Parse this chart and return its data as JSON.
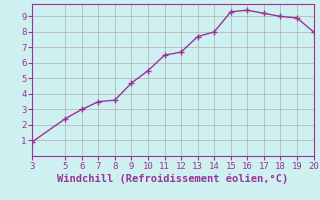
{
  "x": [
    3,
    5,
    6,
    7,
    8,
    9,
    10,
    11,
    12,
    13,
    14,
    15,
    16,
    17,
    18,
    19,
    20
  ],
  "y": [
    0.9,
    2.4,
    3.0,
    3.5,
    3.6,
    4.7,
    5.5,
    6.5,
    6.7,
    7.7,
    8.0,
    9.3,
    9.4,
    9.2,
    9.0,
    8.9,
    8.0
  ],
  "line_color": "#993399",
  "marker": "+",
  "marker_size": 4,
  "marker_linewidth": 1.0,
  "bg_color": "#cff0f0",
  "grid_color": "#b0b0b0",
  "xlabel": "Windchill (Refroidissement éolien,°C)",
  "xlabel_color": "#993399",
  "xlim": [
    3,
    20
  ],
  "ylim": [
    0,
    9.8
  ],
  "xticks": [
    3,
    5,
    6,
    7,
    8,
    9,
    10,
    11,
    12,
    13,
    14,
    15,
    16,
    17,
    18,
    19,
    20
  ],
  "yticks": [
    1,
    2,
    3,
    4,
    5,
    6,
    7,
    8,
    9
  ],
  "tick_color": "#993399",
  "tick_fontsize": 6.5,
  "xlabel_fontsize": 7.5,
  "line_width": 1.0
}
